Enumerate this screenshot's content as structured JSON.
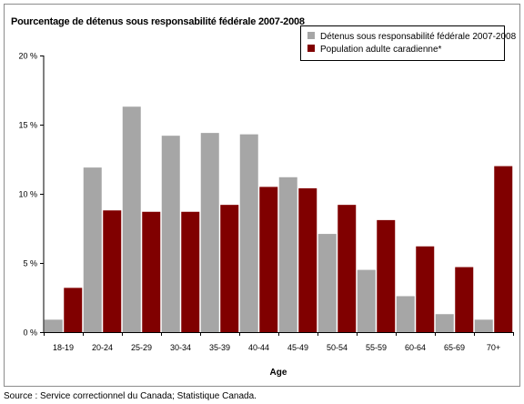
{
  "chart_data": {
    "type": "bar",
    "title": "Pourcentage de détenus sous responsabilité fédérale 2007-2008",
    "xlabel": "Age",
    "ylabel": "",
    "categories": [
      "18-19",
      "20-24",
      "25-29",
      "30-34",
      "35-39",
      "40-44",
      "45-49",
      "50-54",
      "55-59",
      "60-64",
      "65-69",
      "70+"
    ],
    "series": [
      {
        "name": "Détenus sous responsabilité fédérale 2007-2008",
        "color": "#a6a6a6",
        "values": [
          0.9,
          11.9,
          16.3,
          14.2,
          14.4,
          14.3,
          11.2,
          7.1,
          4.5,
          2.6,
          1.3,
          0.9
        ]
      },
      {
        "name": "Population adulte caradienne*",
        "color": "#800000",
        "values": [
          3.2,
          8.8,
          8.7,
          8.7,
          9.2,
          10.5,
          10.4,
          9.2,
          8.1,
          6.2,
          4.7,
          12.0
        ]
      }
    ],
    "ylim": [
      0,
      20
    ],
    "yticks": [
      0,
      5,
      10,
      15,
      20
    ],
    "ytick_labels": [
      "0 %",
      "5 %",
      "10 %",
      "15 %",
      "20 %"
    ],
    "grid": false,
    "legend": "top-right"
  },
  "source": "Source : Service correctionnel du Canada; Statistique Canada."
}
